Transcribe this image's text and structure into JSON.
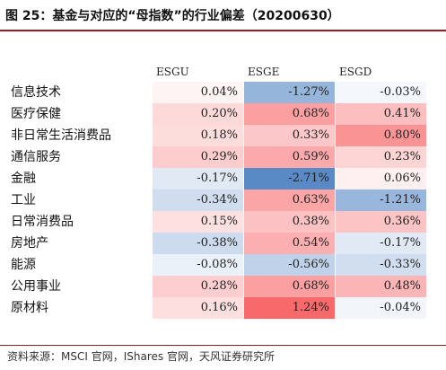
{
  "title": "图 25：基金与对应的“母指数”的行业偏差（20200630）",
  "source": "资料来源：MSCI 官网，IShares 官网，天风证券研究所",
  "chart_data": {
    "type": "heatmap",
    "columns": [
      "ESGU",
      "ESGE",
      "ESGD"
    ],
    "rows": [
      {
        "label": "信息技术",
        "values": [
          "0.04%",
          "-1.27%",
          "-0.03%"
        ],
        "nums": [
          0.04,
          -1.27,
          -0.03
        ]
      },
      {
        "label": "医疗保健",
        "values": [
          "0.20%",
          "0.68%",
          "0.41%"
        ],
        "nums": [
          0.2,
          0.68,
          0.41
        ]
      },
      {
        "label": "非日常生活消费品",
        "values": [
          "0.18%",
          "0.33%",
          "0.80%"
        ],
        "nums": [
          0.18,
          0.33,
          0.8
        ]
      },
      {
        "label": "通信服务",
        "values": [
          "0.29%",
          "0.59%",
          "0.23%"
        ],
        "nums": [
          0.29,
          0.59,
          0.23
        ]
      },
      {
        "label": "金融",
        "values": [
          "-0.17%",
          "-2.71%",
          "0.06%"
        ],
        "nums": [
          -0.17,
          -2.71,
          0.06
        ]
      },
      {
        "label": "工业",
        "values": [
          "-0.34%",
          "0.63%",
          "-1.21%"
        ],
        "nums": [
          -0.34,
          0.63,
          -1.21
        ]
      },
      {
        "label": "日常消费品",
        "values": [
          "0.15%",
          "0.38%",
          "0.36%"
        ],
        "nums": [
          0.15,
          0.38,
          0.36
        ]
      },
      {
        "label": "房地产",
        "values": [
          "-0.38%",
          "0.54%",
          "-0.17%"
        ],
        "nums": [
          -0.38,
          0.54,
          -0.17
        ]
      },
      {
        "label": "能源",
        "values": [
          "-0.08%",
          "-0.56%",
          "-0.33%"
        ],
        "nums": [
          -0.08,
          -0.56,
          -0.33
        ]
      },
      {
        "label": "公用事业",
        "values": [
          "0.28%",
          "0.68%",
          "0.48%"
        ],
        "nums": [
          0.28,
          0.68,
          0.48
        ]
      },
      {
        "label": "原材料",
        "values": [
          "0.16%",
          "1.24%",
          "-0.04%"
        ],
        "nums": [
          0.16,
          1.24,
          -0.04
        ]
      }
    ],
    "colors": {
      "positive": "#f8696b",
      "negative": "#5a8ac6",
      "neutral": "#ffffff"
    }
  }
}
